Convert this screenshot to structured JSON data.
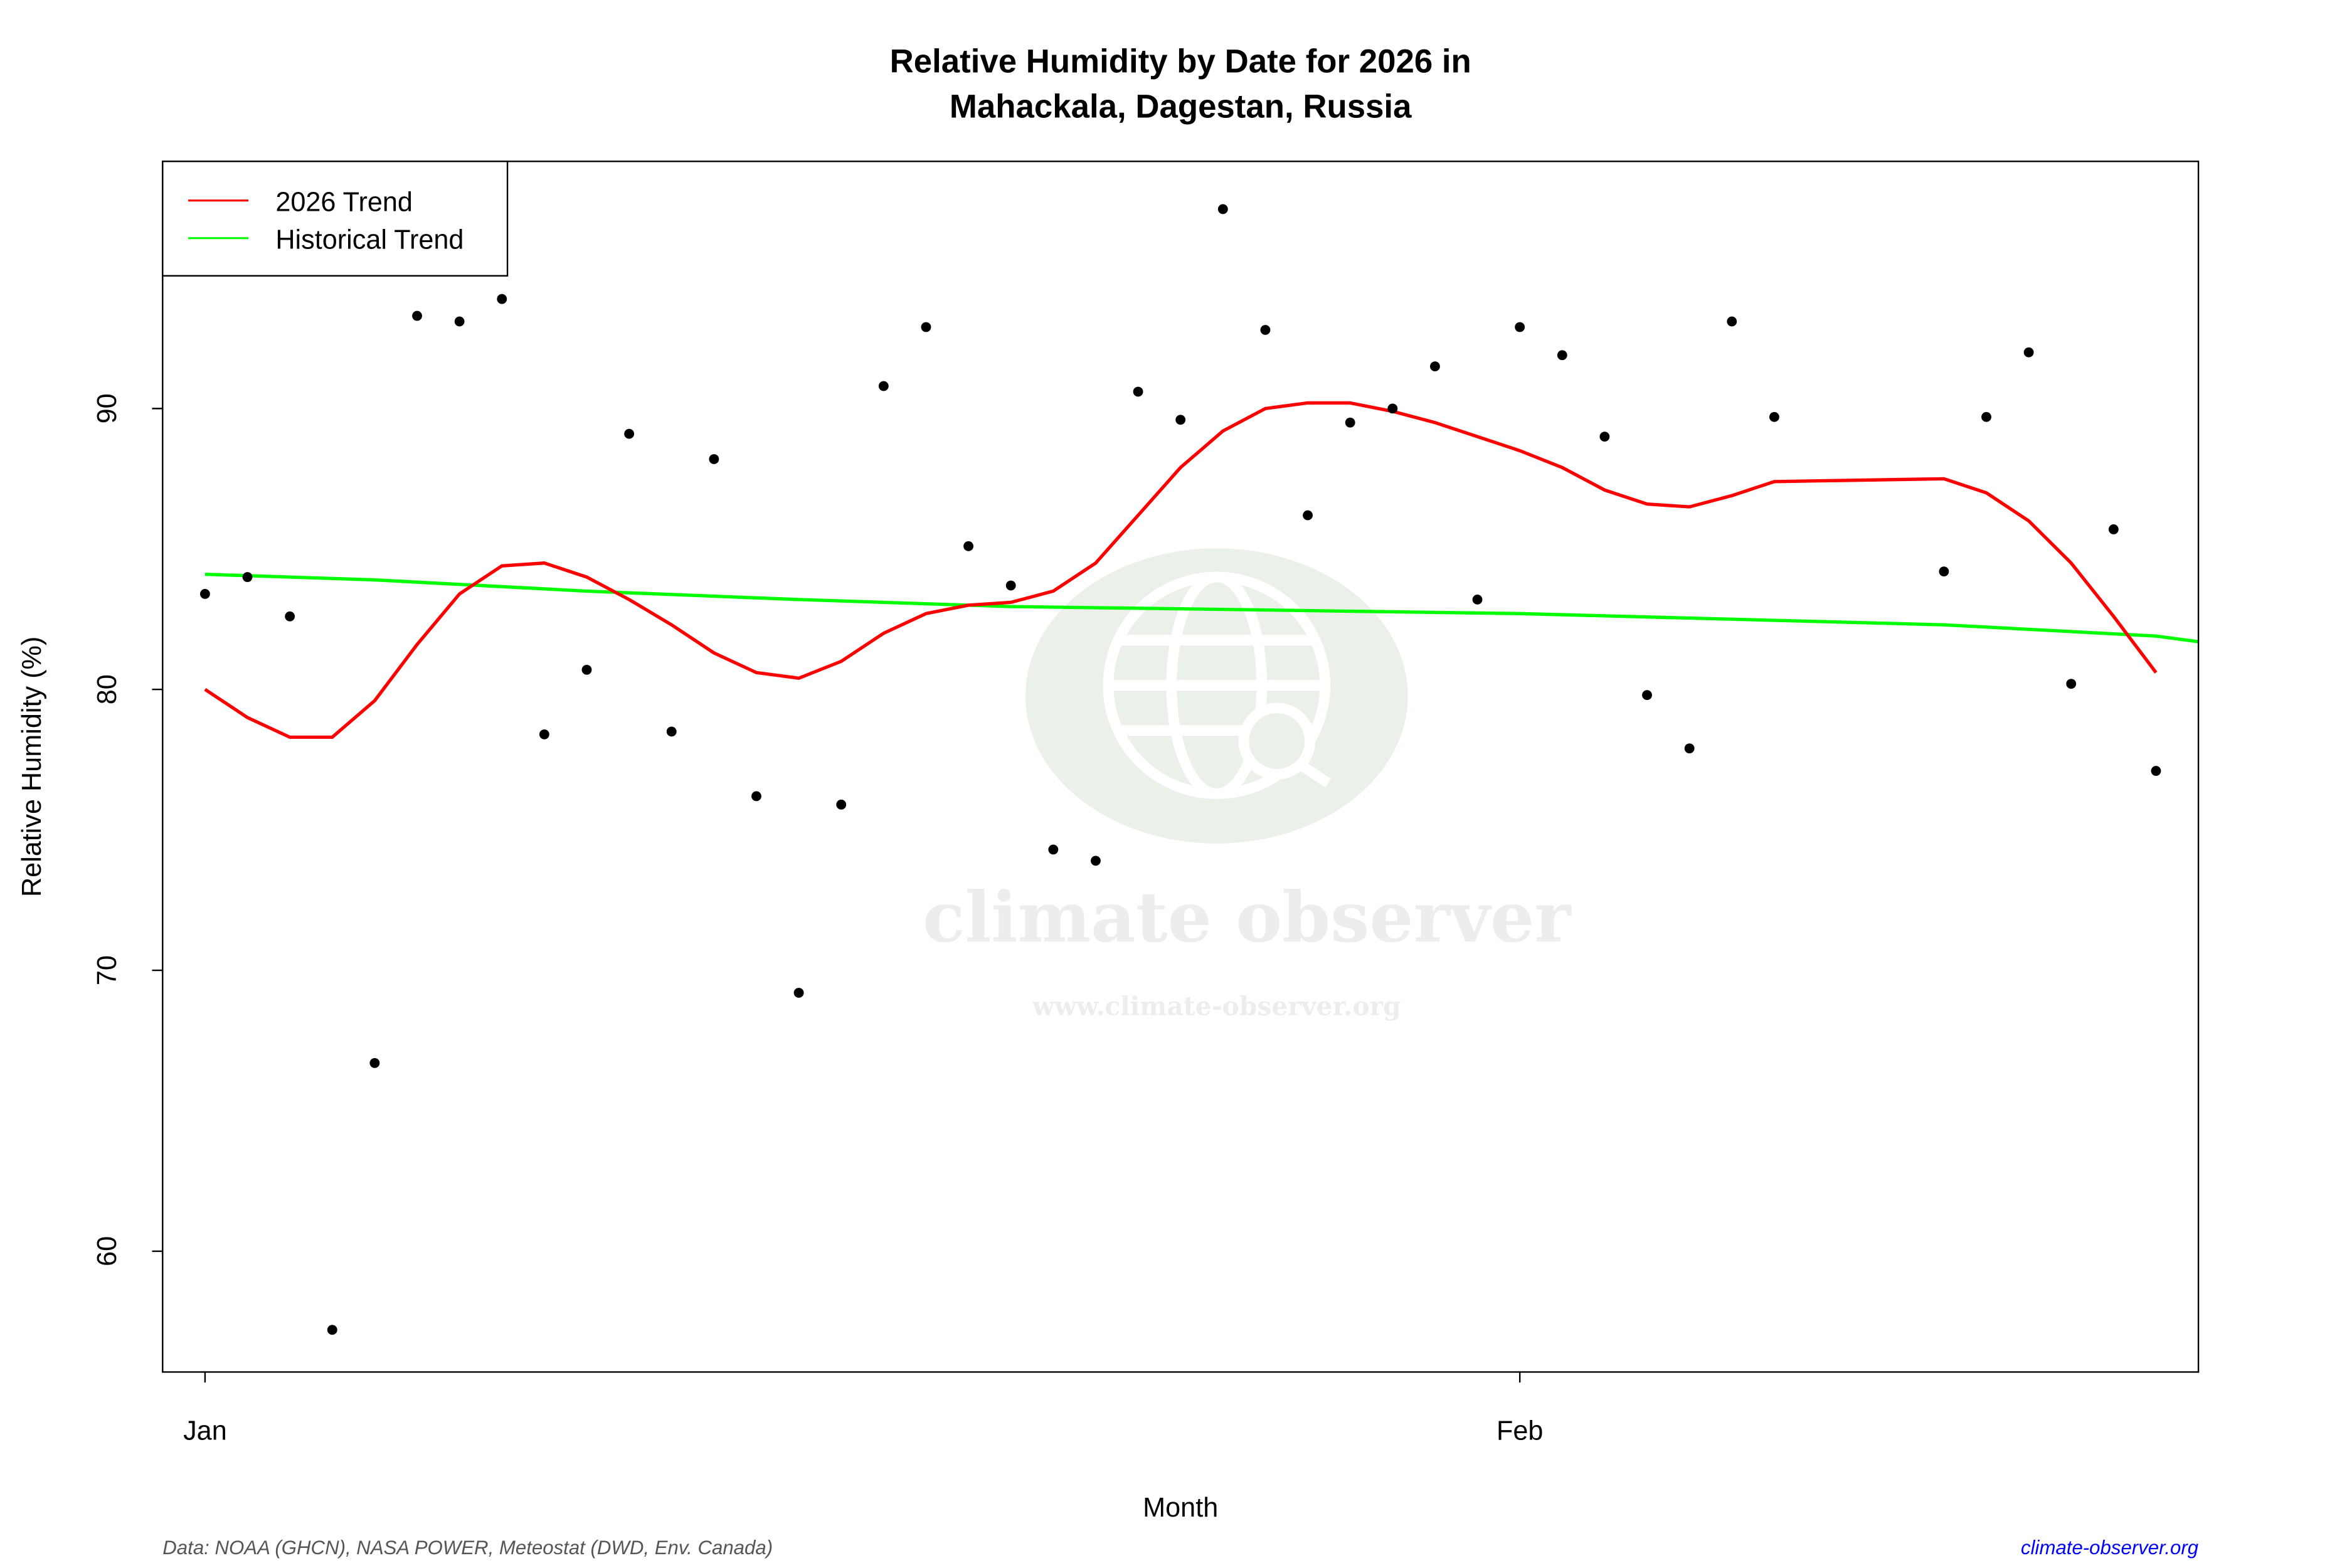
{
  "chart_data": {
    "type": "scatter",
    "title": "Relative Humidity by Date for 2026 in",
    "subtitle": "Mahackala, Dagestan, Russia",
    "xlabel": "Month",
    "ylabel": "Relative Humidity (%)",
    "x_ticks": [
      {
        "label": "Jan",
        "date": "2026-01-01"
      },
      {
        "label": "Feb",
        "date": "2026-02-01"
      }
    ],
    "y_ticks": [
      60,
      70,
      80,
      90
    ],
    "xlim": [
      "2025-12-31",
      "2026-02-17"
    ],
    "ylim": [
      55.7,
      98.8
    ],
    "grid": false,
    "legend_position": "top-left",
    "observations": {
      "color": "#000000",
      "points": [
        [
          "2026-01-01",
          83.4
        ],
        [
          "2026-01-02",
          84.0
        ],
        [
          "2026-01-03",
          82.6
        ],
        [
          "2026-01-04",
          57.2
        ],
        [
          "2026-01-05",
          66.7
        ],
        [
          "2026-01-06",
          93.3
        ],
        [
          "2026-01-07",
          93.1
        ],
        [
          "2026-01-08",
          93.9
        ],
        [
          "2026-01-09",
          78.4
        ],
        [
          "2026-01-10",
          80.7
        ],
        [
          "2026-01-11",
          89.1
        ],
        [
          "2026-01-12",
          78.5
        ],
        [
          "2026-01-13",
          88.2
        ],
        [
          "2026-01-14",
          76.2
        ],
        [
          "2026-01-15",
          69.2
        ],
        [
          "2026-01-16",
          75.9
        ],
        [
          "2026-01-17",
          90.8
        ],
        [
          "2026-01-18",
          92.9
        ],
        [
          "2026-01-19",
          85.1
        ],
        [
          "2026-01-20",
          83.7
        ],
        [
          "2026-01-21",
          74.3
        ],
        [
          "2026-01-22",
          73.9
        ],
        [
          "2026-01-23",
          90.6
        ],
        [
          "2026-01-24",
          89.6
        ],
        [
          "2026-01-25",
          97.1
        ],
        [
          "2026-01-26",
          92.8
        ],
        [
          "2026-01-27",
          86.2
        ],
        [
          "2026-01-28",
          89.5
        ],
        [
          "2026-01-29",
          90.0
        ],
        [
          "2026-01-30",
          91.5
        ],
        [
          "2026-01-31",
          83.2
        ],
        [
          "2026-02-01",
          92.9
        ],
        [
          "2026-02-02",
          91.9
        ],
        [
          "2026-02-03",
          89.0
        ],
        [
          "2026-02-04",
          79.8
        ],
        [
          "2026-02-05",
          77.9
        ],
        [
          "2026-02-06",
          93.1
        ],
        [
          "2026-02-07",
          89.7
        ],
        [
          "2026-02-11",
          84.2
        ],
        [
          "2026-02-12",
          89.7
        ],
        [
          "2026-02-13",
          92.0
        ],
        [
          "2026-02-14",
          80.2
        ],
        [
          "2026-02-15",
          85.7
        ],
        [
          "2026-02-16",
          77.1
        ]
      ]
    },
    "series": [
      {
        "name": "2026 Trend",
        "color": "#ff0000",
        "points": [
          [
            "2026-01-01",
            80.0
          ],
          [
            "2026-01-02",
            79.0
          ],
          [
            "2026-01-03",
            78.3
          ],
          [
            "2026-01-04",
            78.3
          ],
          [
            "2026-01-05",
            79.6
          ],
          [
            "2026-01-06",
            81.6
          ],
          [
            "2026-01-07",
            83.4
          ],
          [
            "2026-01-08",
            84.4
          ],
          [
            "2026-01-09",
            84.5
          ],
          [
            "2026-01-10",
            84.0
          ],
          [
            "2026-01-11",
            83.2
          ],
          [
            "2026-01-12",
            82.3
          ],
          [
            "2026-01-13",
            81.3
          ],
          [
            "2026-01-14",
            80.6
          ],
          [
            "2026-01-15",
            80.4
          ],
          [
            "2026-01-16",
            81.0
          ],
          [
            "2026-01-17",
            82.0
          ],
          [
            "2026-01-18",
            82.7
          ],
          [
            "2026-01-19",
            83.0
          ],
          [
            "2026-01-20",
            83.1
          ],
          [
            "2026-01-21",
            83.5
          ],
          [
            "2026-01-22",
            84.5
          ],
          [
            "2026-01-23",
            86.2
          ],
          [
            "2026-01-24",
            87.9
          ],
          [
            "2026-01-25",
            89.2
          ],
          [
            "2026-01-26",
            90.0
          ],
          [
            "2026-01-27",
            90.2
          ],
          [
            "2026-01-28",
            90.2
          ],
          [
            "2026-01-29",
            89.9
          ],
          [
            "2026-01-30",
            89.5
          ],
          [
            "2026-01-31",
            89.0
          ],
          [
            "2026-02-01",
            88.5
          ],
          [
            "2026-02-02",
            87.9
          ],
          [
            "2026-02-03",
            87.1
          ],
          [
            "2026-02-04",
            86.6
          ],
          [
            "2026-02-05",
            86.5
          ],
          [
            "2026-02-06",
            86.9
          ],
          [
            "2026-02-07",
            87.4
          ],
          [
            "2026-02-11",
            87.5
          ],
          [
            "2026-02-12",
            87.0
          ],
          [
            "2026-02-13",
            86.0
          ],
          [
            "2026-02-14",
            84.5
          ],
          [
            "2026-02-15",
            82.6
          ],
          [
            "2026-02-16",
            80.6
          ]
        ]
      },
      {
        "name": "Historical Trend",
        "color": "#00ff00",
        "points": [
          [
            "2026-01-01",
            84.1
          ],
          [
            "2026-01-05",
            83.9
          ],
          [
            "2026-01-10",
            83.5
          ],
          [
            "2026-01-15",
            83.2
          ],
          [
            "2026-01-20",
            82.95
          ],
          [
            "2026-01-25",
            82.85
          ],
          [
            "2026-02-01",
            82.7
          ],
          [
            "2026-02-06",
            82.5
          ],
          [
            "2026-02-11",
            82.3
          ],
          [
            "2026-02-16",
            81.9
          ],
          [
            "2026-02-17",
            81.7
          ]
        ]
      }
    ]
  },
  "footer": {
    "source": "Data: NOAA (GHCN), NASA POWER, Meteostat (DWD, Env. Canada)",
    "site": "climate-observer.org",
    "site_color": "#0000ff"
  },
  "watermark": {
    "name": "climate observer",
    "url": "www.climate-observer.org"
  }
}
